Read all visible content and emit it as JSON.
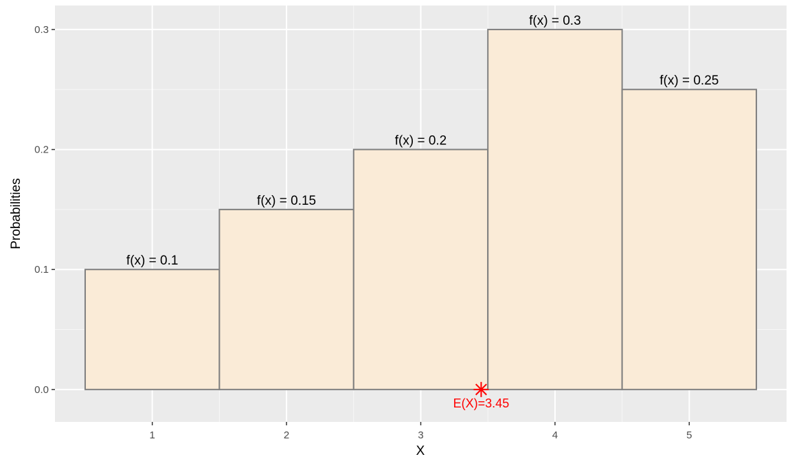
{
  "chart_data": {
    "type": "bar",
    "xlabel": "X",
    "ylabel": "Probabilities",
    "categories": [
      1,
      2,
      3,
      4,
      5
    ],
    "values": [
      0.1,
      0.15,
      0.2,
      0.3,
      0.25
    ],
    "bar_labels": [
      "f(x) = 0.1",
      "f(x) = 0.15",
      "f(x) = 0.2",
      "f(x) = 0.3",
      "f(x) = 0.25"
    ],
    "xlim": [
      0.275,
      5.725
    ],
    "ylim": [
      -0.027,
      0.32
    ],
    "x_ticks": [
      "1",
      "2",
      "3",
      "4",
      "5"
    ],
    "y_ticks": [
      "0.0",
      "0.1",
      "0.2",
      "0.3"
    ],
    "y_tick_values": [
      0.0,
      0.1,
      0.2,
      0.3
    ],
    "grid": true,
    "annotation": {
      "x": 3.45,
      "y": 0.0,
      "marker": "asterisk",
      "label": "E(X)=3.45"
    },
    "colors": {
      "panel": "#ebebeb",
      "grid": "#ffffff",
      "bar_fill": "#faebd7",
      "bar_stroke": "#7f7f7f",
      "annotation": "#ff0000"
    }
  }
}
